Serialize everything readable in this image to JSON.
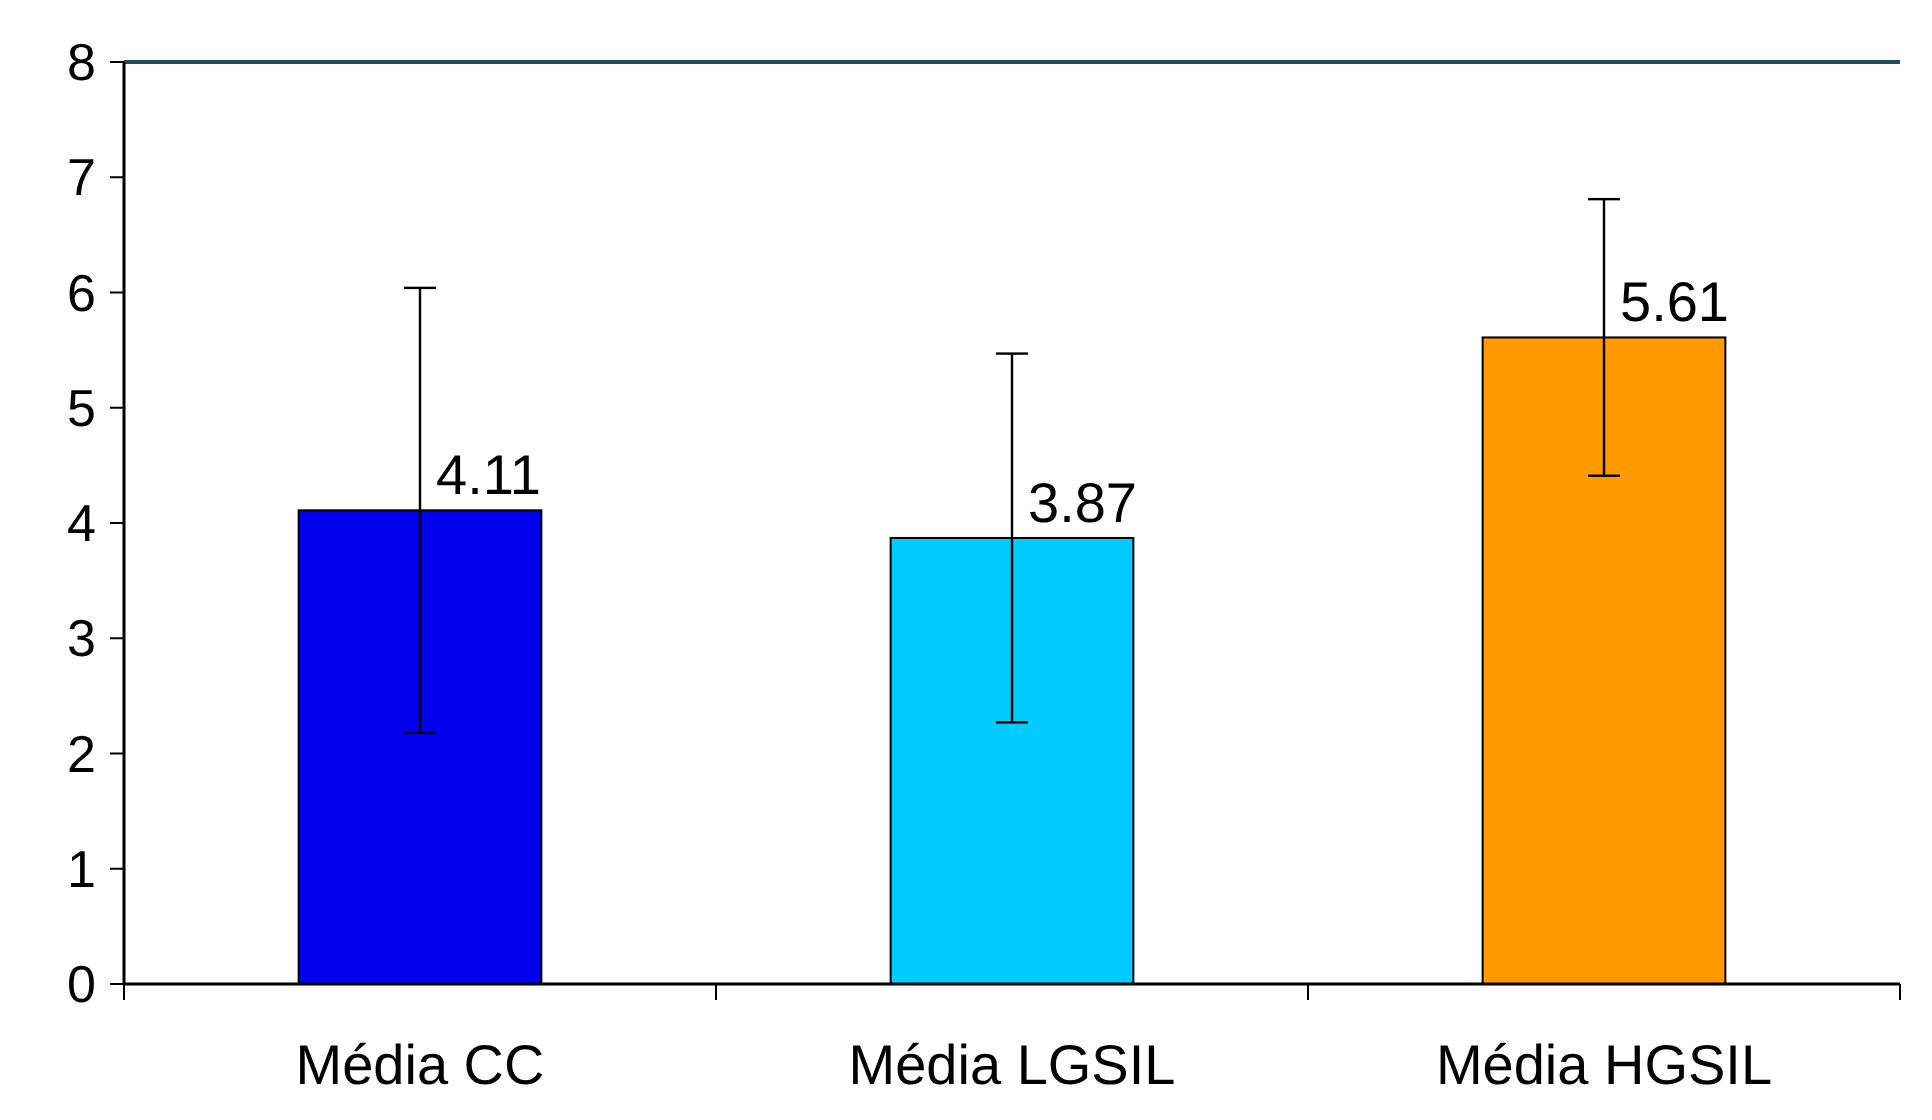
{
  "chart_data": {
    "type": "bar",
    "categories": [
      "Média CC",
      "Média LGSIL",
      "Média HGSIL"
    ],
    "values": [
      4.11,
      3.87,
      5.61
    ],
    "colors": [
      "#0000ee",
      "#00ccff",
      "#ff9900"
    ],
    "errors": [
      1.93,
      1.6,
      1.2
    ],
    "data_labels": true,
    "ylim": [
      0,
      8
    ],
    "yticks": [
      0,
      1,
      2,
      3,
      4,
      5,
      6,
      7,
      8
    ],
    "grid": false
  }
}
